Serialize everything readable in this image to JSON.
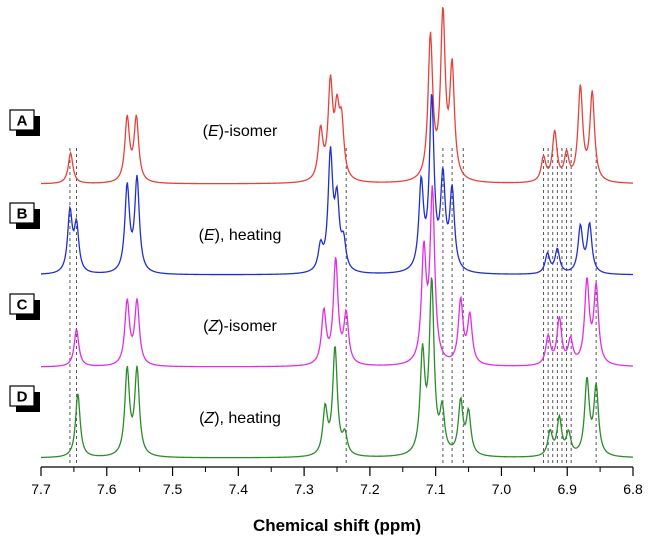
{
  "chart_data": {
    "type": "line",
    "xlabel": "Chemical shift (ppm)",
    "xlim": [
      7.7,
      6.8
    ],
    "x_ticks": [
      "7.7",
      "7.6",
      "7.5",
      "7.4",
      "7.3",
      "7.2",
      "7.1",
      "7.0",
      "6.9",
      "6.8"
    ],
    "reversed_x_axis": true,
    "grid": false,
    "reference_lines_ppm": [
      7.656,
      7.646,
      7.236,
      7.089,
      7.075,
      7.058,
      6.936,
      6.929,
      6.922,
      6.915,
      6.908,
      6.901,
      6.894,
      6.856
    ],
    "series": [
      {
        "panel": "A",
        "name": "(E)-isomer",
        "name_parts": [
          "(",
          "E",
          ")-isomer"
        ],
        "color": "#e8413c",
        "peaks": [
          {
            "ppm": 7.655,
            "height": 0.28
          },
          {
            "ppm": 7.569,
            "height": 0.58
          },
          {
            "ppm": 7.555,
            "height": 0.58
          },
          {
            "ppm": 7.275,
            "height": 0.45
          },
          {
            "ppm": 7.26,
            "height": 0.85
          },
          {
            "ppm": 7.25,
            "height": 0.55
          },
          {
            "ppm": 7.243,
            "height": 0.48
          },
          {
            "ppm": 7.108,
            "height": 1.3
          },
          {
            "ppm": 7.089,
            "height": 1.48
          },
          {
            "ppm": 7.075,
            "height": 1.0
          },
          {
            "ppm": 6.936,
            "height": 0.22
          },
          {
            "ppm": 6.919,
            "height": 0.45
          },
          {
            "ppm": 6.901,
            "height": 0.24
          },
          {
            "ppm": 6.88,
            "height": 0.85
          },
          {
            "ppm": 6.862,
            "height": 0.8
          }
        ]
      },
      {
        "panel": "B",
        "name": "(E), heating",
        "name_parts": [
          "(",
          "E",
          "), heating"
        ],
        "color": "#1f2fd6",
        "peaks": [
          {
            "ppm": 7.656,
            "height": 0.55
          },
          {
            "ppm": 7.646,
            "height": 0.42
          },
          {
            "ppm": 7.569,
            "height": 0.78
          },
          {
            "ppm": 7.554,
            "height": 0.85
          },
          {
            "ppm": 7.275,
            "height": 0.22
          },
          {
            "ppm": 7.26,
            "height": 1.05
          },
          {
            "ppm": 7.25,
            "height": 0.6
          },
          {
            "ppm": 7.24,
            "height": 0.25
          },
          {
            "ppm": 7.122,
            "height": 0.78
          },
          {
            "ppm": 7.106,
            "height": 1.55
          },
          {
            "ppm": 7.089,
            "height": 0.82
          },
          {
            "ppm": 7.075,
            "height": 0.72
          },
          {
            "ppm": 6.93,
            "height": 0.18
          },
          {
            "ppm": 6.915,
            "height": 0.22
          },
          {
            "ppm": 6.88,
            "height": 0.42
          },
          {
            "ppm": 6.866,
            "height": 0.44
          }
        ]
      },
      {
        "panel": "C",
        "name": "(Z)-isomer",
        "name_parts": [
          "(",
          "Z",
          ")-isomer"
        ],
        "color": "#e02ee6",
        "peaks": [
          {
            "ppm": 7.646,
            "height": 0.34
          },
          {
            "ppm": 7.569,
            "height": 0.58
          },
          {
            "ppm": 7.554,
            "height": 0.58
          },
          {
            "ppm": 7.27,
            "height": 0.48
          },
          {
            "ppm": 7.252,
            "height": 0.95
          },
          {
            "ppm": 7.236,
            "height": 0.45
          },
          {
            "ppm": 7.118,
            "height": 1.0
          },
          {
            "ppm": 7.105,
            "height": 1.55
          },
          {
            "ppm": 7.062,
            "height": 0.58
          },
          {
            "ppm": 7.048,
            "height": 0.44
          },
          {
            "ppm": 6.929,
            "height": 0.26
          },
          {
            "ppm": 6.912,
            "height": 0.42
          },
          {
            "ppm": 6.895,
            "height": 0.22
          },
          {
            "ppm": 6.87,
            "height": 0.75
          },
          {
            "ppm": 6.856,
            "height": 0.7
          }
        ]
      },
      {
        "panel": "D",
        "name": "(Z), heating",
        "name_parts": [
          "(",
          "Z",
          "), heating"
        ],
        "color": "#2b8c2b",
        "peaks": [
          {
            "ppm": 7.644,
            "height": 0.58
          },
          {
            "ppm": 7.569,
            "height": 0.78
          },
          {
            "ppm": 7.554,
            "height": 0.78
          },
          {
            "ppm": 7.268,
            "height": 0.42
          },
          {
            "ppm": 7.253,
            "height": 0.98
          },
          {
            "ppm": 7.238,
            "height": 0.18
          },
          {
            "ppm": 7.12,
            "height": 0.9
          },
          {
            "ppm": 7.106,
            "height": 1.55
          },
          {
            "ppm": 7.09,
            "height": 0.38
          },
          {
            "ppm": 7.062,
            "height": 0.48
          },
          {
            "ppm": 7.05,
            "height": 0.38
          },
          {
            "ppm": 6.926,
            "height": 0.22
          },
          {
            "ppm": 6.912,
            "height": 0.34
          },
          {
            "ppm": 6.898,
            "height": 0.2
          },
          {
            "ppm": 6.87,
            "height": 0.68
          },
          {
            "ppm": 6.856,
            "height": 0.62
          }
        ]
      }
    ]
  }
}
